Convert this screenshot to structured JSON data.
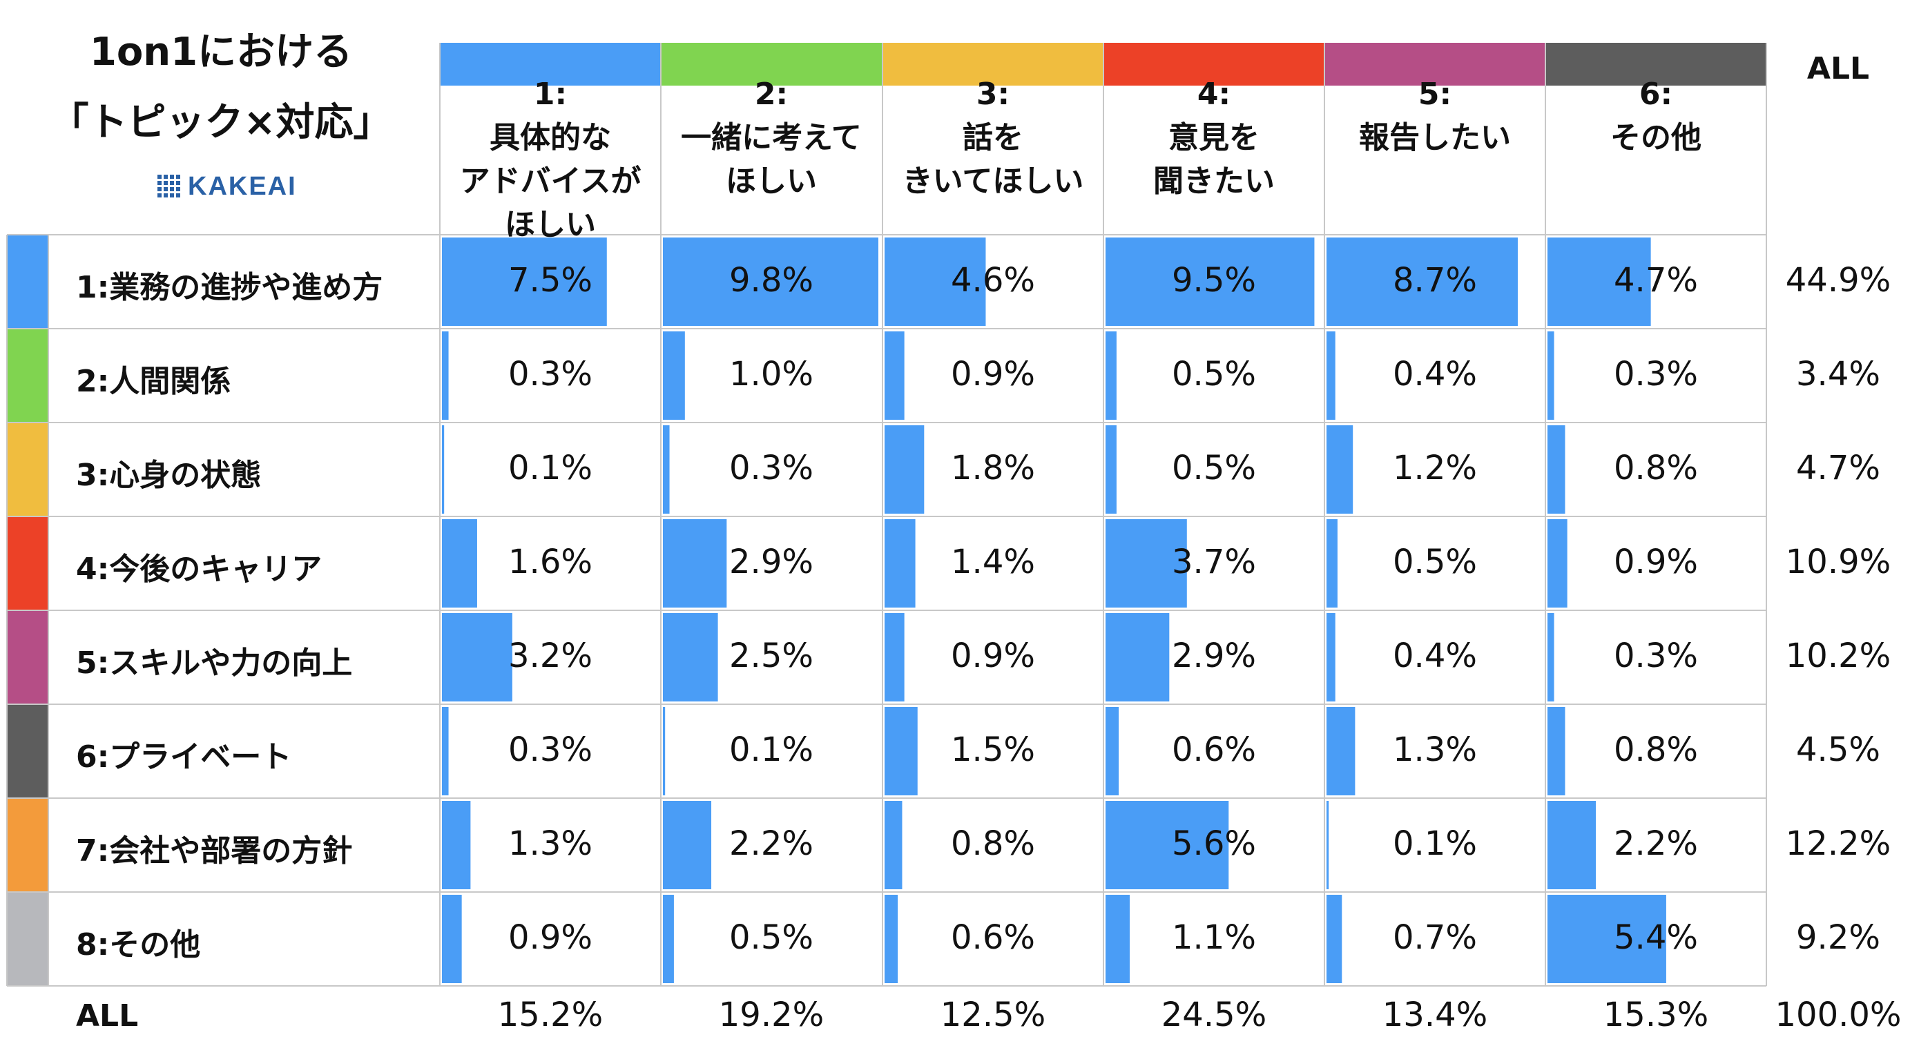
{
  "title_line1": "1on1における",
  "title_line2": "「トピック×対応」",
  "logo_text": "KAKEAI",
  "all_label": "ALL",
  "colors": {
    "bar": "#4a9df6",
    "grid": "#c8c8c8",
    "col_colors": [
      "#4a9df6",
      "#80d450",
      "#f0bd3f",
      "#ec4127",
      "#b54e86",
      "#5d5d5d"
    ],
    "row_colors": [
      "#4a9df6",
      "#80d450",
      "#f0bd3f",
      "#ec4127",
      "#b54e86",
      "#5d5d5d",
      "#f39b3b",
      "#b7b8bc"
    ]
  },
  "chart_data": {
    "type": "table",
    "columns": [
      {
        "id": "1:",
        "lines": [
          "具体的な",
          "アドバイスが",
          "ほしい"
        ]
      },
      {
        "id": "2:",
        "lines": [
          "一緒に考えて",
          "ほしい"
        ]
      },
      {
        "id": "3:",
        "lines": [
          "話を",
          "きいてほしい"
        ]
      },
      {
        "id": "4:",
        "lines": [
          "意見を",
          "聞きたい"
        ]
      },
      {
        "id": "5:",
        "lines": [
          "報告したい"
        ]
      },
      {
        "id": "6:",
        "lines": [
          "その他"
        ]
      }
    ],
    "rows": [
      {
        "label": "1:業務の進捗や進め方",
        "values": [
          7.5,
          9.8,
          4.6,
          9.5,
          8.7,
          4.7
        ],
        "all": "44.9%"
      },
      {
        "label": "2:人間関係",
        "values": [
          0.3,
          1.0,
          0.9,
          0.5,
          0.4,
          0.3
        ],
        "all": "3.4%"
      },
      {
        "label": "3:心身の状態",
        "values": [
          0.1,
          0.3,
          1.8,
          0.5,
          1.2,
          0.8
        ],
        "all": "4.7%"
      },
      {
        "label": "4:今後のキャリア",
        "values": [
          1.6,
          2.9,
          1.4,
          3.7,
          0.5,
          0.9
        ],
        "all": "10.9%"
      },
      {
        "label": "5:スキルや力の向上",
        "values": [
          3.2,
          2.5,
          0.9,
          2.9,
          0.4,
          0.3
        ],
        "all": "10.2%"
      },
      {
        "label": "6:プライベート",
        "values": [
          0.3,
          0.1,
          1.5,
          0.6,
          1.3,
          0.8
        ],
        "all": "4.5%"
      },
      {
        "label": "7:会社や部署の方針",
        "values": [
          1.3,
          2.2,
          0.8,
          5.6,
          0.1,
          2.2
        ],
        "all": "12.2%"
      },
      {
        "label": "8:その他",
        "values": [
          0.9,
          0.5,
          0.6,
          1.1,
          0.7,
          5.4
        ],
        "all": "9.2%"
      }
    ],
    "column_totals": [
      "15.2%",
      "19.2%",
      "12.5%",
      "24.5%",
      "13.4%",
      "15.3%"
    ],
    "grand_total": "100.0%",
    "bar_max": 9.8
  }
}
